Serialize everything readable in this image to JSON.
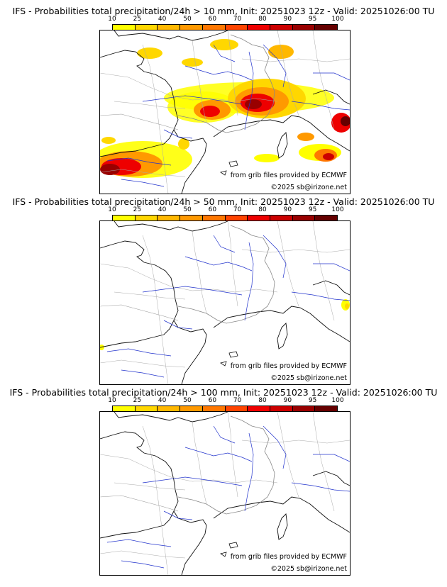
{
  "legend": {
    "ticks": [
      "10",
      "25",
      "40",
      "50",
      "60",
      "70",
      "80",
      "90",
      "95",
      "100"
    ],
    "colors": [
      "#ffff00",
      "#ffd700",
      "#ffb800",
      "#ff9900",
      "#ff7700",
      "#ff4400",
      "#ee0000",
      "#cc0000",
      "#990000",
      "#660000"
    ]
  },
  "credits": {
    "source": "from grib files provided by ECMWF",
    "copyright": "©2025 sb@irizone.net"
  },
  "panels": [
    {
      "title": "IFS - Probabilities total precipitation/24h > 10 mm, Init: 20251023 12z - Valid: 20251026:00 TU",
      "threshold": "10 mm",
      "has_precip": true
    },
    {
      "title": "IFS - Probabilities total precipitation/24h > 50 mm, Init: 20251023 12z - Valid: 20251026:00 TU",
      "threshold": "50 mm",
      "has_precip": true
    },
    {
      "title": "IFS - Probabilities total precipitation/24h > 100 mm, Init: 20251023 12z - Valid: 20251026:00 TU",
      "threshold": "100 mm",
      "has_precip": false
    }
  ]
}
